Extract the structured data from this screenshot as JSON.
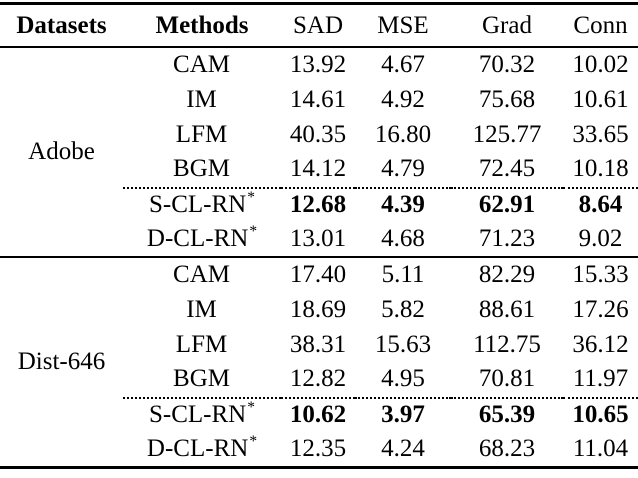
{
  "colors": {
    "text": "#000000",
    "background": "#ffffff",
    "rule": "#000000"
  },
  "table": {
    "headers": [
      "Datasets",
      "Methods",
      "SAD",
      "MSE",
      "Grad",
      "Conn"
    ],
    "blocks": [
      {
        "dataset": "Adobe",
        "rows": [
          {
            "method": "CAM",
            "sup": "",
            "values": [
              "13.92",
              "4.67",
              "70.32",
              "10.02"
            ]
          },
          {
            "method": "IM",
            "sup": "",
            "values": [
              "14.61",
              "4.92",
              "75.68",
              "10.61"
            ]
          },
          {
            "method": "LFM",
            "sup": "",
            "values": [
              "40.35",
              "16.80",
              "125.77",
              "33.65"
            ]
          },
          {
            "method": "BGM",
            "sup": "",
            "values": [
              "14.12",
              "4.79",
              "72.45",
              "10.18"
            ]
          },
          {
            "method": "S-CL-RN",
            "sup": "*",
            "values": [
              "12.68",
              "4.39",
              "62.91",
              "8.64"
            ]
          },
          {
            "method": "D-CL-RN",
            "sup": "*",
            "values": [
              "13.01",
              "4.68",
              "71.23",
              "9.02"
            ]
          }
        ]
      },
      {
        "dataset": "Dist-646",
        "rows": [
          {
            "method": "CAM",
            "sup": "",
            "values": [
              "17.40",
              "5.11",
              "82.29",
              "15.33"
            ]
          },
          {
            "method": "IM",
            "sup": "",
            "values": [
              "18.69",
              "5.82",
              "88.61",
              "17.26"
            ]
          },
          {
            "method": "LFM",
            "sup": "",
            "values": [
              "38.31",
              "15.63",
              "112.75",
              "36.12"
            ]
          },
          {
            "method": "BGM",
            "sup": "",
            "values": [
              "12.82",
              "4.95",
              "70.81",
              "11.97"
            ]
          },
          {
            "method": "S-CL-RN",
            "sup": "*",
            "values": [
              "10.62",
              "3.97",
              "65.39",
              "10.65"
            ]
          },
          {
            "method": "D-CL-RN",
            "sup": "*",
            "values": [
              "12.35",
              "4.24",
              "68.23",
              "11.04"
            ]
          }
        ]
      }
    ]
  }
}
